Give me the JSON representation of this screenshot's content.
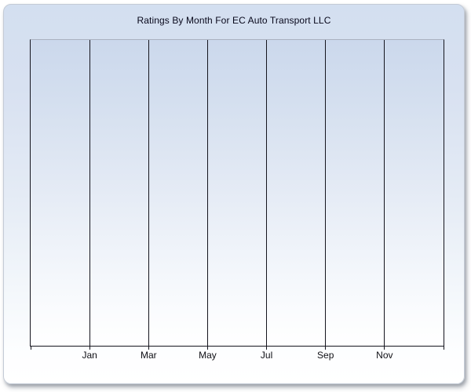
{
  "page": {
    "background_color": "#ffffff"
  },
  "panel": {
    "name": "chart-panel",
    "border_color": "#c4cbd6",
    "gradient_top_color": "#d3dff0",
    "gradient_bottom_color": "#ffffff",
    "shadow_color": "#6e7480"
  },
  "chart_data": {
    "type": "line",
    "title": "Ratings By Month For EC Auto Transport LLC",
    "subtitle": "",
    "xlabel": "",
    "ylabel": "",
    "x_tick_labels": [
      "Jan",
      "Mar",
      "May",
      "Jul",
      "Sep",
      "Nov"
    ],
    "y_tick_labels": [],
    "series": [],
    "values": [],
    "empty_plot": true,
    "layout": {
      "vertical_gridline_count": 8,
      "gridline_intervals": 7,
      "labeled_gridline_indexes": [
        1,
        2,
        3,
        4,
        5,
        6
      ],
      "gridline_color": "#15151e",
      "plot_top_border_color": "#a9b1bf",
      "gridlines": "vertical only",
      "legend_position": "none",
      "plot_gradient_top_color": "#cbd8ec",
      "plot_gradient_bottom_color": "#ffffff"
    }
  }
}
